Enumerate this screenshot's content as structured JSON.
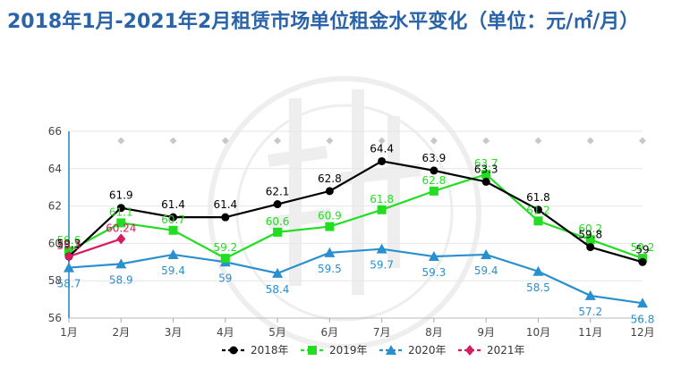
{
  "chart_data": {
    "type": "line",
    "title": "2018年1月-2021年2月租赁市场单位租金水平变化（单位：元/㎡/月）",
    "xlabel": "",
    "ylabel": "",
    "ylim": [
      56,
      66
    ],
    "yticks": [
      56,
      58,
      60,
      62,
      64,
      66
    ],
    "categories": [
      "1月",
      "2月",
      "3月",
      "4月",
      "5月",
      "6月",
      "7月",
      "8月",
      "9月",
      "10月",
      "11月",
      "12月"
    ],
    "grid": true,
    "legend": "bottom",
    "series": [
      {
        "name": "2018年",
        "color": "#000000",
        "marker": "circle",
        "values": [
          59.3,
          61.9,
          61.4,
          61.4,
          62.1,
          62.8,
          64.4,
          63.9,
          63.3,
          61.8,
          59.8,
          59
        ]
      },
      {
        "name": "2019年",
        "color": "#22dd22",
        "marker": "square",
        "values": [
          59.6,
          61.1,
          60.7,
          59.2,
          60.6,
          60.9,
          61.8,
          62.8,
          63.7,
          61.2,
          60.2,
          59.2
        ]
      },
      {
        "name": "2020年",
        "color": "#2a8fcf",
        "marker": "triangle",
        "values": [
          58.7,
          58.9,
          59.4,
          59,
          58.4,
          59.5,
          59.7,
          59.3,
          59.4,
          58.5,
          57.2,
          56.8
        ]
      },
      {
        "name": "2021年",
        "color": "#d81b60",
        "marker": "diamond",
        "values": [
          59.3,
          60.24,
          null,
          null,
          null,
          null,
          null,
          null,
          null,
          null,
          null,
          null
        ]
      }
    ]
  }
}
